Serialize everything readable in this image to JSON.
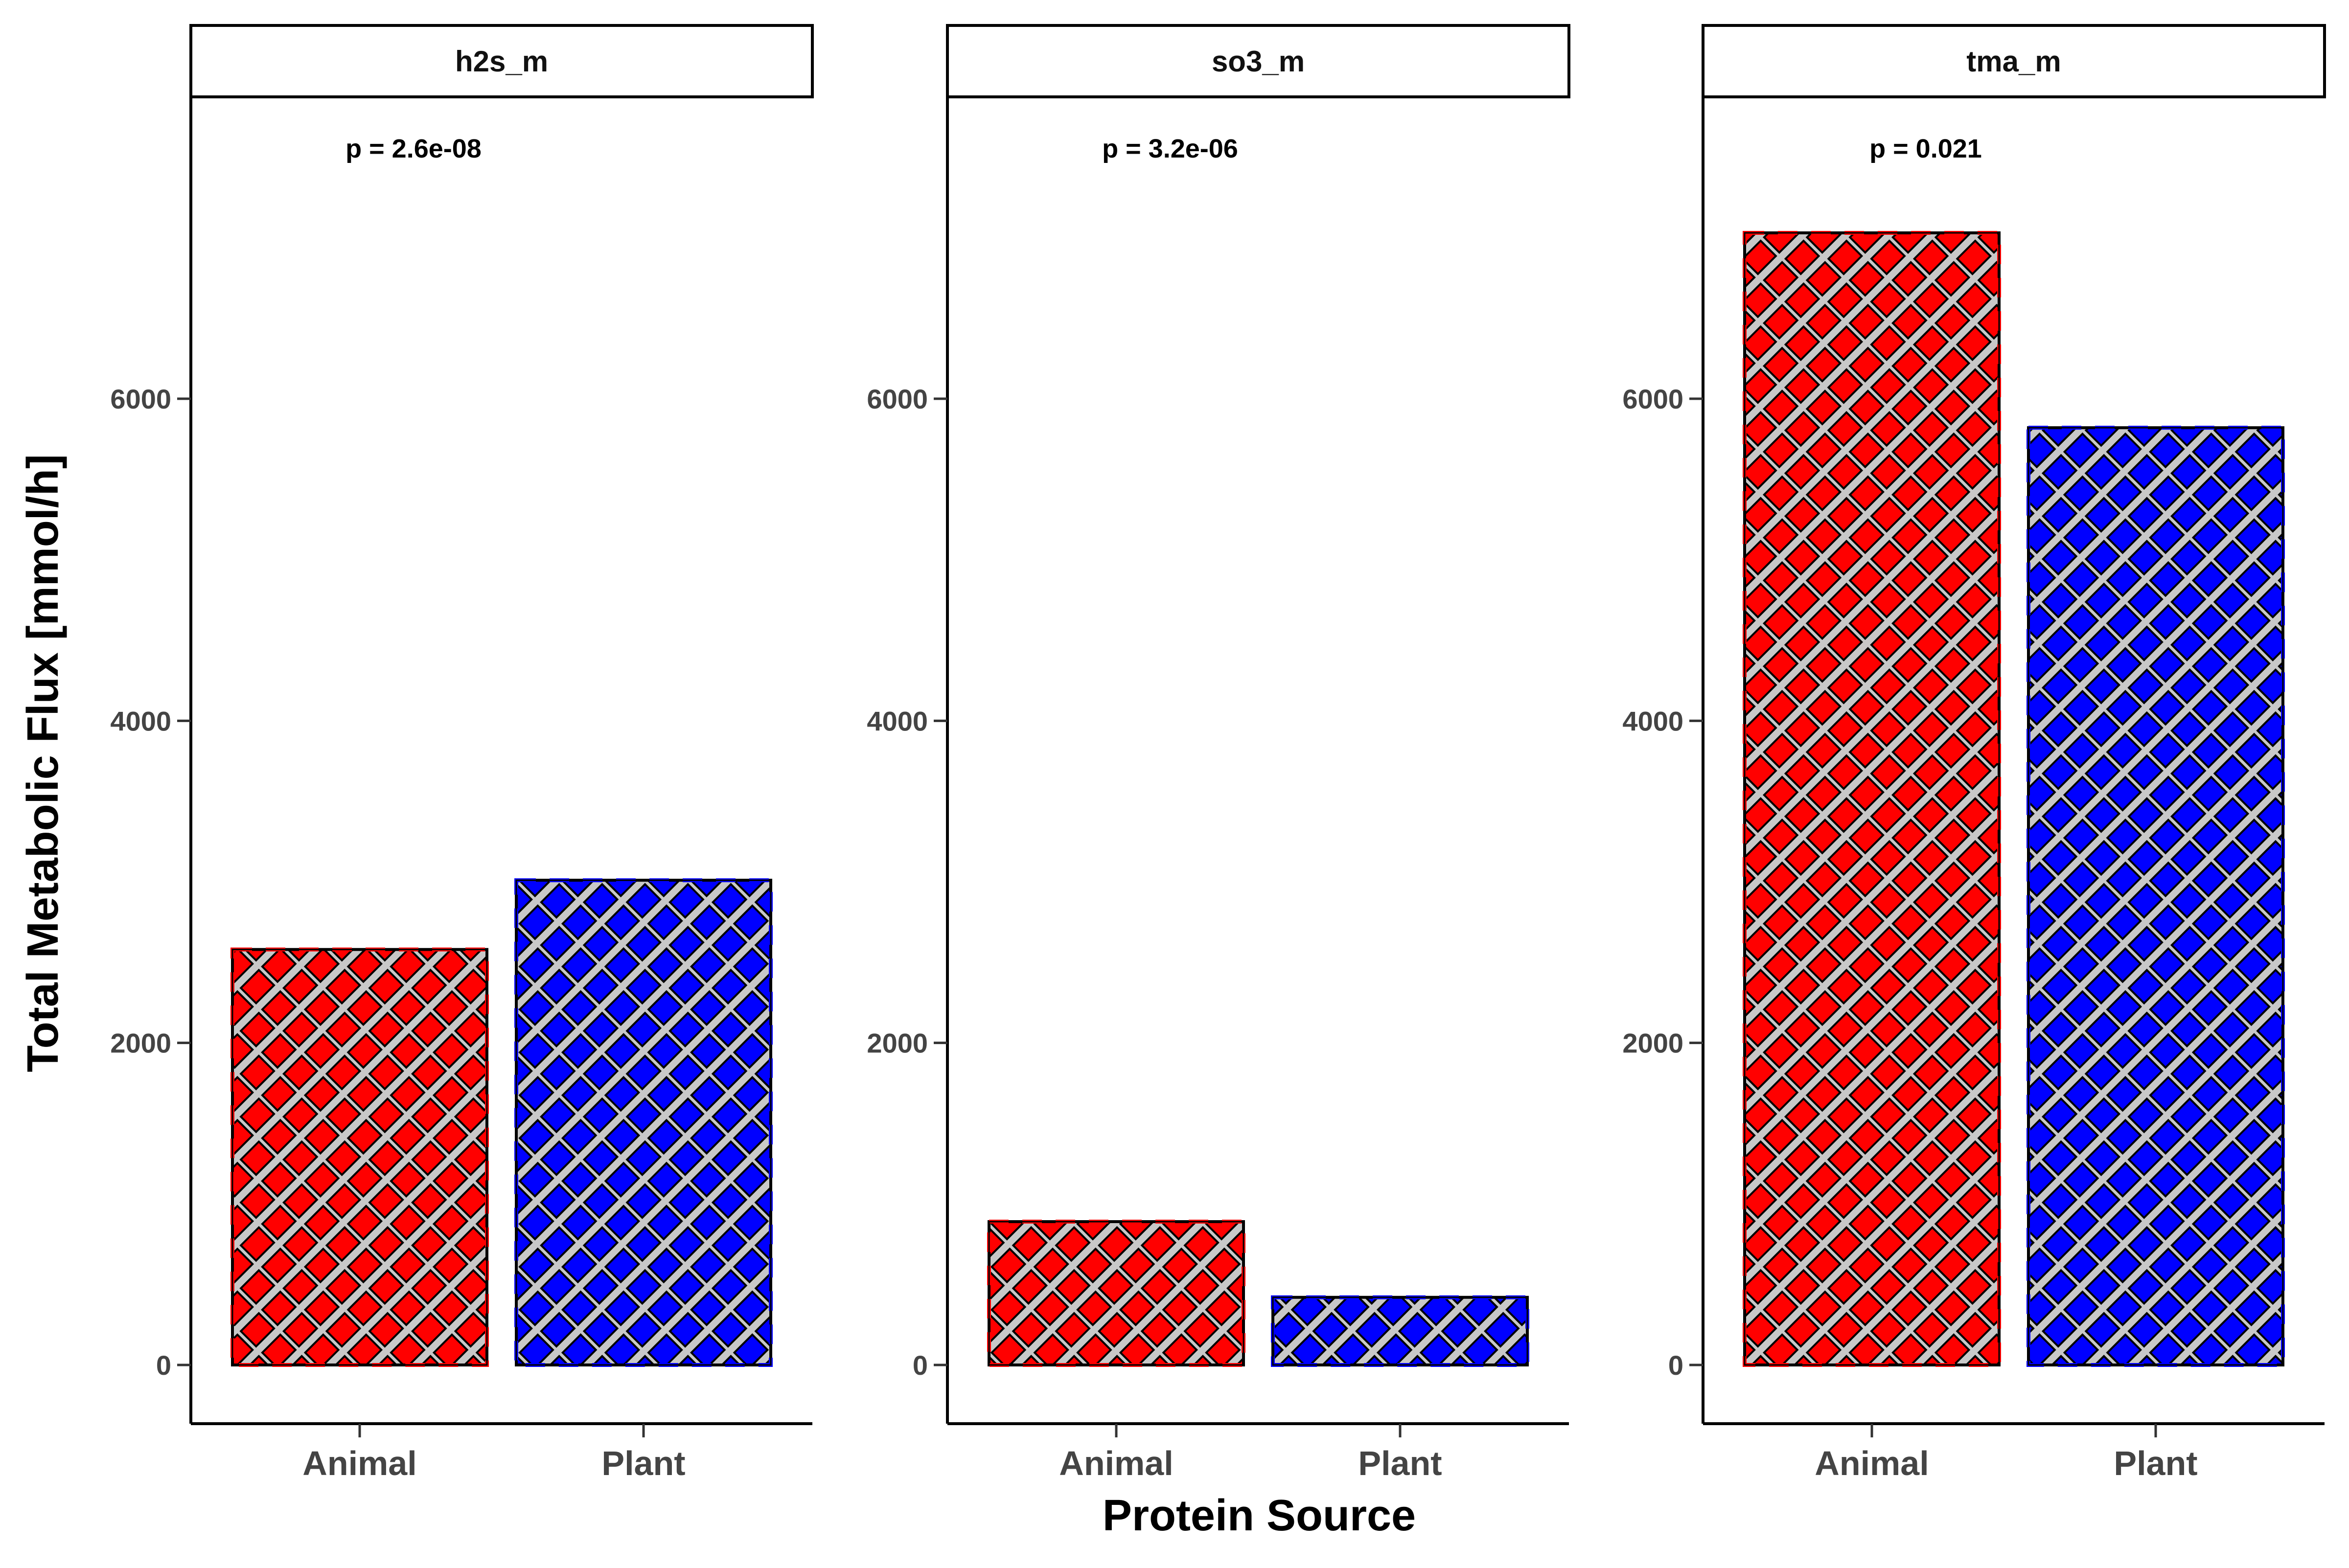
{
  "chart_data": {
    "type": "bar",
    "xlabel": "Protein Source",
    "ylabel": "Total Metabolic Flux [mmol/h]",
    "categories": [
      "Animal",
      "Plant"
    ],
    "ylim": [
      0,
      7800
    ],
    "yticks": [
      0,
      2000,
      4000,
      6000
    ],
    "grid": false,
    "legend": "none",
    "fill_pattern": "crosshatch",
    "colors": {
      "Animal": "#ff0000",
      "Plant": "#0000ff",
      "pattern": "#c8c8c8",
      "stroke": "#000000"
    },
    "panels": [
      {
        "title": "h2s_m",
        "pvalue": "p = 2.6e-08",
        "values": [
          2580,
          3010
        ]
      },
      {
        "title": "so3_m",
        "pvalue": "p = 3.2e-06",
        "values": [
          890,
          420
        ]
      },
      {
        "title": "tma_m",
        "pvalue": "p = 0.021",
        "values": [
          7030,
          5820
        ]
      }
    ]
  }
}
